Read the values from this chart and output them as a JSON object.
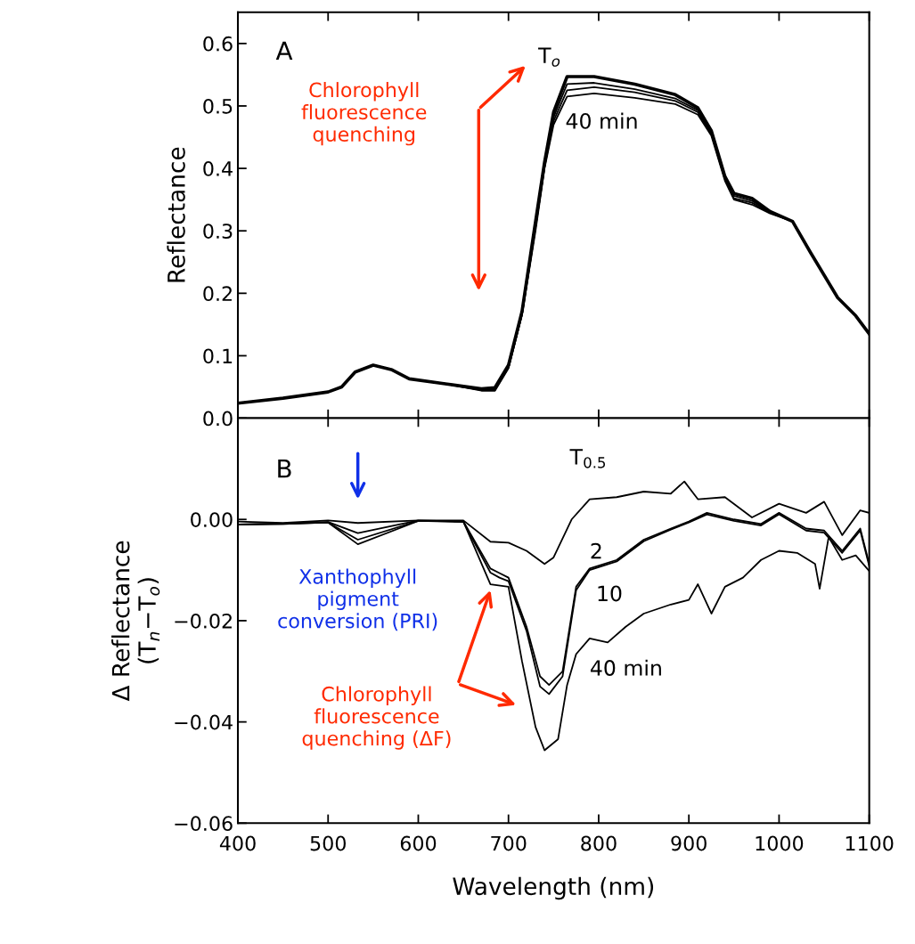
{
  "chart_data": [
    {
      "type": "line",
      "ylabel": "Reflectance",
      "xlim": [
        400,
        1100
      ],
      "xticks": [
        400,
        500,
        600,
        700,
        800,
        900,
        1000,
        1100
      ],
      "ylim": [
        0,
        0.65
      ],
      "yticks": [
        {
          "value": 0.0,
          "label": "0.0"
        },
        0.1,
        0.2,
        0.3,
        0.4,
        0.5,
        0.6
      ],
      "tick_labels": "y",
      "grid": false,
      "legend": false,
      "x": [
        400,
        450,
        500,
        515,
        530,
        550,
        570,
        590,
        630,
        670,
        685,
        700,
        715,
        730,
        740,
        750,
        765,
        795,
        840,
        885,
        910,
        925,
        940,
        950,
        970,
        990,
        1015,
        1035,
        1065,
        1085,
        1100
      ],
      "series": [
        {
          "name": "T$_{o}$",
          "color": "#000000",
          "values": [
            0.024,
            0.032,
            0.042,
            0.05,
            0.074,
            0.085,
            0.078,
            0.063,
            0.055,
            0.047,
            0.049,
            0.085,
            0.171,
            0.315,
            0.41,
            0.49,
            0.547,
            0.547,
            0.535,
            0.518,
            0.497,
            0.46,
            0.387,
            0.36,
            0.352,
            0.331,
            0.315,
            0.265,
            0.193,
            0.164,
            0.135
          ]
        },
        {
          "color": "#000000",
          "values": [
            0.024,
            0.032,
            0.042,
            0.05,
            0.074,
            0.085,
            0.078,
            0.063,
            0.055,
            0.046,
            0.047,
            0.083,
            0.168,
            0.31,
            0.405,
            0.482,
            0.535,
            0.537,
            0.527,
            0.512,
            0.493,
            0.457,
            0.385,
            0.356,
            0.348,
            0.33,
            0.315,
            0.265,
            0.193,
            0.164,
            0.135
          ]
        },
        {
          "color": "#000000",
          "values": [
            0.024,
            0.032,
            0.042,
            0.05,
            0.074,
            0.085,
            0.078,
            0.063,
            0.055,
            0.045,
            0.045,
            0.081,
            0.166,
            0.305,
            0.402,
            0.476,
            0.525,
            0.53,
            0.522,
            0.508,
            0.49,
            0.455,
            0.383,
            0.352,
            0.345,
            0.329,
            0.315,
            0.265,
            0.193,
            0.164,
            0.135
          ]
        },
        {
          "name": "40 min",
          "color": "#000000",
          "values": [
            0.024,
            0.032,
            0.042,
            0.05,
            0.074,
            0.085,
            0.078,
            0.063,
            0.055,
            0.044,
            0.044,
            0.08,
            0.165,
            0.3,
            0.4,
            0.47,
            0.515,
            0.52,
            0.513,
            0.503,
            0.486,
            0.452,
            0.38,
            0.35,
            0.342,
            0.328,
            0.315,
            0.265,
            0.193,
            0.164,
            0.135
          ]
        }
      ],
      "annotations": [
        "A",
        "Chlorophyll\nfluorescence\nquenching"
      ]
    },
    {
      "type": "line",
      "xlabel": "Wavelength (nm)",
      "ylabel": "Δ Reflectance\n(T$_{n}$−T$_{o}$)",
      "xlim": [
        400,
        1100
      ],
      "xticks": [
        400,
        500,
        600,
        700,
        800,
        900,
        1000,
        1100
      ],
      "ylim": [
        -0.06,
        0.02
      ],
      "yticks": [
        {
          "value": -0.06,
          "label": "−0.06"
        },
        {
          "value": -0.04,
          "label": "−0.04"
        },
        {
          "value": -0.02,
          "label": "−0.02"
        },
        {
          "value": 0.0,
          "label": "0.00"
        }
      ],
      "grid": false,
      "legend": false,
      "series": [
        {
          "name": "T$_{0.5}$",
          "color": "#000000",
          "x": [
            400,
            450,
            500,
            533,
            600,
            650,
            680,
            700,
            720,
            740,
            750,
            770,
            790,
            820,
            850,
            880,
            895,
            910,
            940,
            970,
            1000,
            1030,
            1050,
            1070,
            1090,
            1100
          ],
          "values": [
            -0.0004,
            -0.0007,
            -0.0002,
            -0.0007,
            -0.0002,
            -0.0002,
            -0.0044,
            -0.0046,
            -0.0062,
            -0.0088,
            -0.0075,
            0.0,
            0.004,
            0.0044,
            0.0055,
            0.0051,
            0.0075,
            0.004,
            0.0044,
            0.0004,
            0.0031,
            0.0013,
            0.0035,
            -0.0031,
            0.0018,
            0.0013
          ]
        },
        {
          "name": "2",
          "color": "#000000",
          "x": [
            400,
            450,
            500,
            533,
            600,
            650,
            680,
            690,
            700,
            720,
            735,
            745,
            760,
            775,
            790,
            820,
            850,
            880,
            900,
            920,
            950,
            980,
            1000,
            1030,
            1050,
            1070,
            1090,
            1100
          ],
          "values": [
            -0.001,
            -0.0008,
            -0.0005,
            -0.0027,
            -0.0002,
            -0.0004,
            -0.0097,
            -0.0106,
            -0.0115,
            -0.0212,
            -0.031,
            -0.0327,
            -0.03,
            -0.0133,
            -0.0097,
            -0.008,
            -0.004,
            -0.0018,
            -0.0004,
            0.0013,
            0.0,
            -0.0009,
            0.0013,
            -0.0018,
            -0.0022,
            -0.0062,
            -0.0018,
            -0.0088
          ]
        },
        {
          "name": "10",
          "color": "#000000",
          "x": [
            400,
            450,
            500,
            533,
            600,
            650,
            680,
            690,
            700,
            720,
            735,
            745,
            760,
            775,
            790,
            820,
            850,
            880,
            900,
            920,
            950,
            980,
            1000,
            1030,
            1050,
            1070,
            1090,
            1100
          ],
          "values": [
            -0.001,
            -0.0009,
            -0.0006,
            -0.004,
            -0.0003,
            -0.0005,
            -0.0105,
            -0.0115,
            -0.0122,
            -0.022,
            -0.033,
            -0.0345,
            -0.031,
            -0.014,
            -0.01,
            -0.0083,
            -0.0043,
            -0.002,
            -0.0006,
            0.001,
            -0.0003,
            -0.0012,
            0.001,
            -0.0022,
            -0.0026,
            -0.0066,
            -0.0022,
            -0.0092
          ]
        },
        {
          "name": "40 min",
          "color": "#000000",
          "x": [
            400,
            450,
            500,
            533,
            600,
            650,
            680,
            700,
            715,
            730,
            740,
            755,
            765,
            775,
            790,
            810,
            830,
            850,
            880,
            900,
            910,
            925,
            940,
            960,
            980,
            1000,
            1020,
            1040,
            1045,
            1055,
            1070,
            1085,
            1100
          ],
          "values": [
            -0.001,
            -0.0009,
            -0.0006,
            -0.0049,
            -0.0003,
            -0.0004,
            -0.0128,
            -0.0133,
            -0.028,
            -0.041,
            -0.0456,
            -0.0434,
            -0.0327,
            -0.0266,
            -0.0235,
            -0.0243,
            -0.0212,
            -0.0186,
            -0.0168,
            -0.0159,
            -0.0128,
            -0.0186,
            -0.0133,
            -0.0115,
            -0.008,
            -0.0062,
            -0.0066,
            -0.0088,
            -0.0137,
            -0.0035,
            -0.008,
            -0.0071,
            -0.0102
          ]
        }
      ],
      "annotations": [
        "B",
        "Xanthophyll\npigment\nconversion (PRI)",
        "Chlorophyll\nfluorescence\nquenching (ΔF)"
      ]
    }
  ]
}
